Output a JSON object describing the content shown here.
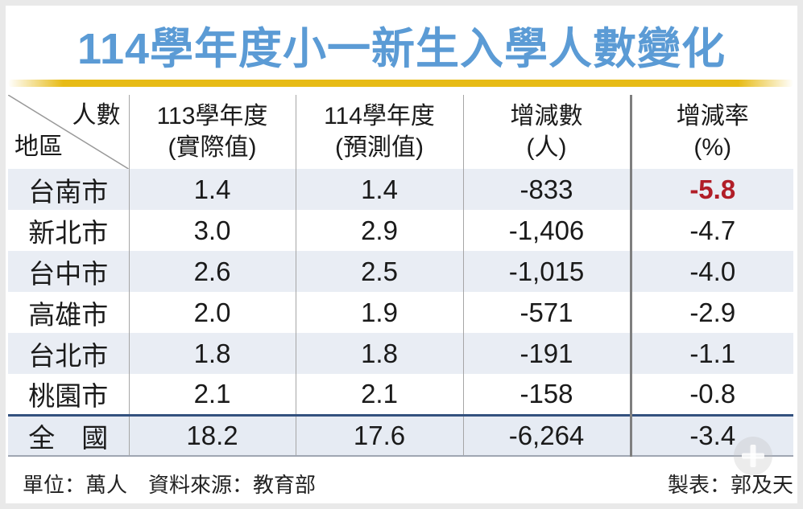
{
  "title": "114學年度小一新生入學人數變化",
  "colors": {
    "title_blue": "#5B9BD5",
    "gold_bar": "#E7BB16",
    "row_stripe": "#E9EDF4",
    "total_divider_blue": "#33517E",
    "negative_red": "#B11E28",
    "thin_grid": "#A6A6A6",
    "thick_grid": "#7F7F7F"
  },
  "table": {
    "corner": {
      "top_right": "人數",
      "bottom_left": "地區"
    },
    "columns": [
      {
        "line1": "113學年度",
        "line2": "(實際值)"
      },
      {
        "line1": "114學年度",
        "line2": "(預測值)"
      },
      {
        "line1": "增減數",
        "line2": "(人)"
      },
      {
        "line1": "增減率",
        "line2": "(%)"
      }
    ],
    "rows": [
      {
        "region": "台南市",
        "y113": "1.4",
        "y114": "1.4",
        "change": "-833",
        "rate": "-5.8",
        "rate_highlight": true
      },
      {
        "region": "新北市",
        "y113": "3.0",
        "y114": "2.9",
        "change": "-1,406",
        "rate": "-4.7",
        "rate_highlight": false
      },
      {
        "region": "台中市",
        "y113": "2.6",
        "y114": "2.5",
        "change": "-1,015",
        "rate": "-4.0",
        "rate_highlight": false
      },
      {
        "region": "高雄市",
        "y113": "2.0",
        "y114": "1.9",
        "change": "-571",
        "rate": "-2.9",
        "rate_highlight": false
      },
      {
        "region": "台北市",
        "y113": "1.8",
        "y114": "1.8",
        "change": "-191",
        "rate": "-1.1",
        "rate_highlight": false
      },
      {
        "region": "桃園市",
        "y113": "2.1",
        "y114": "2.1",
        "change": "-158",
        "rate": "-0.8",
        "rate_highlight": false
      }
    ],
    "total": {
      "region": "全　國",
      "y113": "18.2",
      "y114": "17.6",
      "change": "-6,264",
      "rate": "-3.4"
    }
  },
  "footer": {
    "left": "單位：萬人　資料來源：教育部",
    "right": "製表：郭及天"
  },
  "chart_data": {
    "type": "table",
    "title": "114學年度小一新生入學人數變化",
    "unit": "萬人",
    "source": "教育部",
    "author": "郭及天",
    "columns": [
      "地區",
      "113學年度(實際值)",
      "114學年度(預測值)",
      "增減數(人)",
      "增減率(%)"
    ],
    "rows": [
      [
        "台南市",
        1.4,
        1.4,
        -833,
        -5.8
      ],
      [
        "新北市",
        3.0,
        2.9,
        -1406,
        -4.7
      ],
      [
        "台中市",
        2.6,
        2.5,
        -1015,
        -4.0
      ],
      [
        "高雄市",
        2.0,
        1.9,
        -571,
        -2.9
      ],
      [
        "台北市",
        1.8,
        1.8,
        -191,
        -1.1
      ],
      [
        "桃園市",
        2.1,
        2.1,
        -158,
        -0.8
      ],
      [
        "全國",
        18.2,
        17.6,
        -6264,
        -3.4
      ]
    ]
  }
}
